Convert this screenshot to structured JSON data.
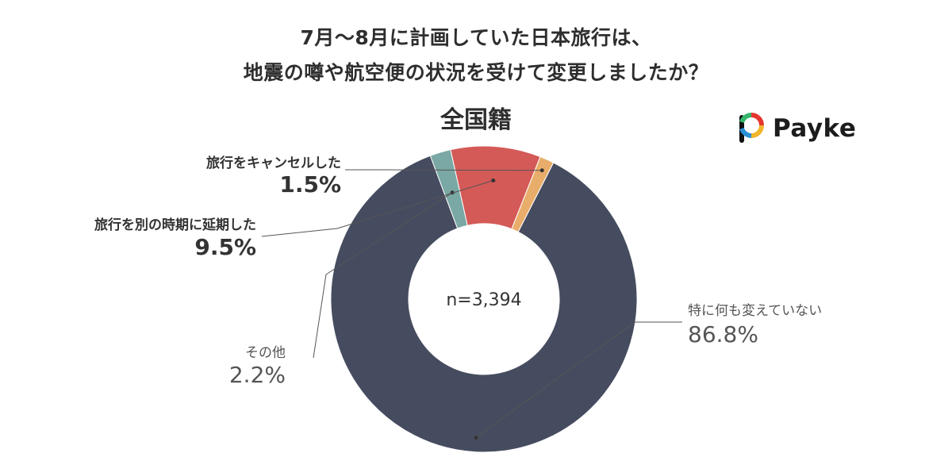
{
  "title_line1": "7月〜8月に計画していた日本旅行は、",
  "title_line2": "地震の噂や航空便の状況を受けて変更しましたか？",
  "subtitle": "全国籍",
  "logo_text": "Payke",
  "chart_data": {
    "type": "donut",
    "title": "7月〜8月に計画していた日本旅行は、地震の噂や航空便の状況を受けて変更しましたか？",
    "subtitle": "全国籍",
    "center_label": "n=3,394",
    "unit": "%",
    "slices": [
      {
        "label": "特に何も変えていない",
        "value": 86.8,
        "display": "86.8%",
        "color": "#464c5f"
      },
      {
        "label": "その他",
        "value": 2.2,
        "display": "2.2%",
        "color": "#7aa8a4"
      },
      {
        "label": "旅行を別の時期に延期した",
        "value": 9.5,
        "display": "9.5%",
        "color": "#d45a57"
      },
      {
        "label": "旅行をキャンセルした",
        "value": 1.5,
        "display": "1.5%",
        "color": "#e8ad6a"
      }
    ]
  }
}
